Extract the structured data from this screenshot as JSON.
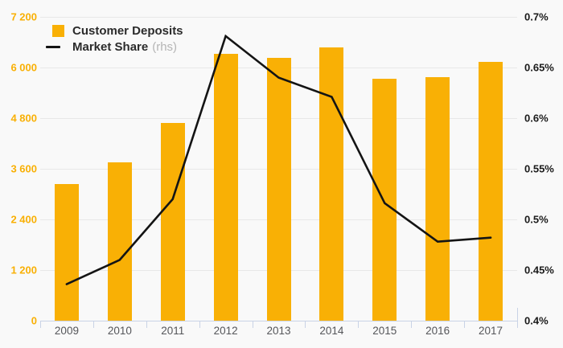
{
  "chart_data": {
    "type": "bar",
    "subtype": "bar+line-combo",
    "title": "",
    "categories": [
      "2009",
      "2010",
      "2011",
      "2012",
      "2013",
      "2014",
      "2015",
      "2016",
      "2017"
    ],
    "series": [
      {
        "name": "Customer Deposits",
        "type": "bar",
        "axis": "left",
        "color": "#f9b005",
        "values": [
          3240,
          3760,
          4680,
          6330,
          6230,
          6480,
          5730,
          5770,
          6130
        ]
      },
      {
        "name": "Market Share",
        "note": "(rhs)",
        "type": "line",
        "axis": "right",
        "color": "#141414",
        "values": [
          0.436,
          0.46,
          0.52,
          0.681,
          0.64,
          0.621,
          0.516,
          0.478,
          0.482
        ]
      }
    ],
    "left_axis": {
      "min": 0,
      "max": 7200,
      "tick_step": 1200,
      "tick_labels_top_down": [
        "7 200",
        "6 000",
        "4 800",
        "3 600",
        "2 400",
        "1 200",
        "0"
      ],
      "label_color": "#f9b005"
    },
    "right_axis": {
      "min": 0.4,
      "max": 0.7,
      "tick_step": 0.05,
      "tick_labels_top_down": [
        "0.7%",
        "0.65%",
        "0.6%",
        "0.55%",
        "0.5%",
        "0.45%",
        "0.4%"
      ],
      "label_color": "#1a1a1a"
    },
    "grid": true,
    "legend_position": "top-left"
  },
  "legend": {
    "items": [
      {
        "label": "Customer Deposits",
        "note": "",
        "swatch": "bar-square"
      },
      {
        "label": "Market Share",
        "note": "(rhs)",
        "swatch": "line-dash"
      }
    ]
  },
  "colors": {
    "background": "#f9f9f9",
    "bar": "#f9b005",
    "line": "#141414",
    "gridline": "#e8e8e8",
    "axis": "#c9d3e6",
    "x_label": "#55565a",
    "note_gray": "#b5b5b5"
  }
}
